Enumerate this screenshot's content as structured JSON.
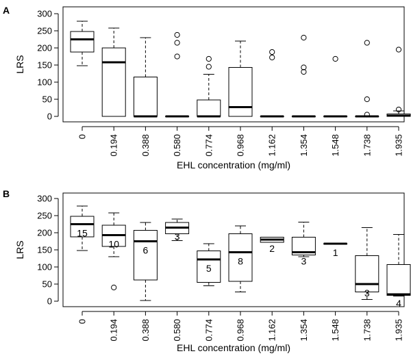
{
  "chart_data": [
    {
      "type": "boxplot",
      "panel": "A",
      "xlabel": "EHL concentration (mg/ml)",
      "ylabel": "LRS",
      "ylim": [
        0,
        300
      ],
      "yticks": [
        0,
        50,
        100,
        150,
        200,
        250,
        300
      ],
      "grid": false,
      "categories": [
        "0",
        "0.194",
        "0.388",
        "0.580",
        "0.774",
        "0.968",
        "1.162",
        "1.354",
        "1.548",
        "1.738",
        "1.935"
      ],
      "boxes": [
        {
          "whisker_low": 148,
          "q1": 188,
          "median": 225,
          "q3": 248,
          "whisker_high": 278,
          "outliers": []
        },
        {
          "whisker_low": 0,
          "q1": 0,
          "median": 158,
          "q3": 200,
          "whisker_high": 258,
          "outliers": []
        },
        {
          "whisker_low": 0,
          "q1": 0,
          "median": 0,
          "q3": 115,
          "whisker_high": 230,
          "outliers": []
        },
        {
          "whisker_low": 0,
          "q1": 0,
          "median": 0,
          "q3": 0,
          "whisker_high": 0,
          "outliers": [
            238,
            215,
            175
          ]
        },
        {
          "whisker_low": 0,
          "q1": 0,
          "median": 0,
          "q3": 48,
          "whisker_high": 123,
          "outliers": [
            168,
            145
          ]
        },
        {
          "whisker_low": 0,
          "q1": 0,
          "median": 27,
          "q3": 143,
          "whisker_high": 220,
          "outliers": []
        },
        {
          "whisker_low": 0,
          "q1": 0,
          "median": 0,
          "q3": 0,
          "whisker_high": 0,
          "outliers": [
            188,
            172
          ]
        },
        {
          "whisker_low": 0,
          "q1": 0,
          "median": 0,
          "q3": 0,
          "whisker_high": 0,
          "outliers": [
            230,
            143,
            130
          ]
        },
        {
          "whisker_low": 0,
          "q1": 0,
          "median": 0,
          "q3": 0,
          "whisker_high": 0,
          "outliers": [
            168
          ]
        },
        {
          "whisker_low": 0,
          "q1": 0,
          "median": 0,
          "q3": 0,
          "whisker_high": 0,
          "outliers": [
            215,
            50,
            5
          ]
        },
        {
          "whisker_low": 0,
          "q1": 0,
          "median": 2,
          "q3": 7,
          "whisker_high": 16,
          "outliers": [
            195,
            20
          ]
        }
      ]
    },
    {
      "type": "boxplot",
      "panel": "B",
      "xlabel": "EHL concentration (mg/ml)",
      "ylabel": "LRS",
      "ylim": [
        0,
        300
      ],
      "yticks": [
        0,
        50,
        100,
        150,
        200,
        250,
        300
      ],
      "grid": false,
      "categories": [
        "0",
        "0.194",
        "0.388",
        "0.580",
        "0.774",
        "0.968",
        "1.162",
        "1.354",
        "1.548",
        "1.738",
        "1.935"
      ],
      "boxes": [
        {
          "whisker_low": 148,
          "q1": 188,
          "median": 225,
          "q3": 248,
          "whisker_high": 278,
          "outliers": [],
          "count": "15"
        },
        {
          "whisker_low": 130,
          "q1": 160,
          "median": 193,
          "q3": 222,
          "whisker_high": 258,
          "outliers": [
            40
          ],
          "count": "10"
        },
        {
          "whisker_low": 2,
          "q1": 62,
          "median": 175,
          "q3": 207,
          "whisker_high": 230,
          "outliers": [],
          "count": "6"
        },
        {
          "whisker_low": 177,
          "q1": 197,
          "median": 215,
          "q3": 230,
          "whisker_high": 240,
          "outliers": [],
          "count": "3"
        },
        {
          "whisker_low": 45,
          "q1": 55,
          "median": 122,
          "q3": 147,
          "whisker_high": 168,
          "outliers": [],
          "count": "5"
        },
        {
          "whisker_low": 27,
          "q1": 58,
          "median": 143,
          "q3": 197,
          "whisker_high": 220,
          "outliers": [],
          "count": "8"
        },
        {
          "whisker_low": 172,
          "q1": 172,
          "median": 180,
          "q3": 187,
          "whisker_high": 187,
          "outliers": [],
          "count": "2"
        },
        {
          "whisker_low": 130,
          "q1": 135,
          "median": 143,
          "q3": 187,
          "whisker_high": 231,
          "outliers": [],
          "count": "3"
        },
        {
          "whisker_low": 168,
          "q1": 168,
          "median": 168,
          "q3": 168,
          "whisker_high": 168,
          "outliers": [],
          "count": "1"
        },
        {
          "whisker_low": 5,
          "q1": 27,
          "median": 50,
          "q3": 133,
          "whisker_high": 215,
          "outliers": [],
          "count": "3"
        },
        {
          "whisker_low": 15,
          "q1": 17,
          "median": 20,
          "q3": 107,
          "whisker_high": 195,
          "outliers": [],
          "count": "4"
        }
      ]
    }
  ]
}
